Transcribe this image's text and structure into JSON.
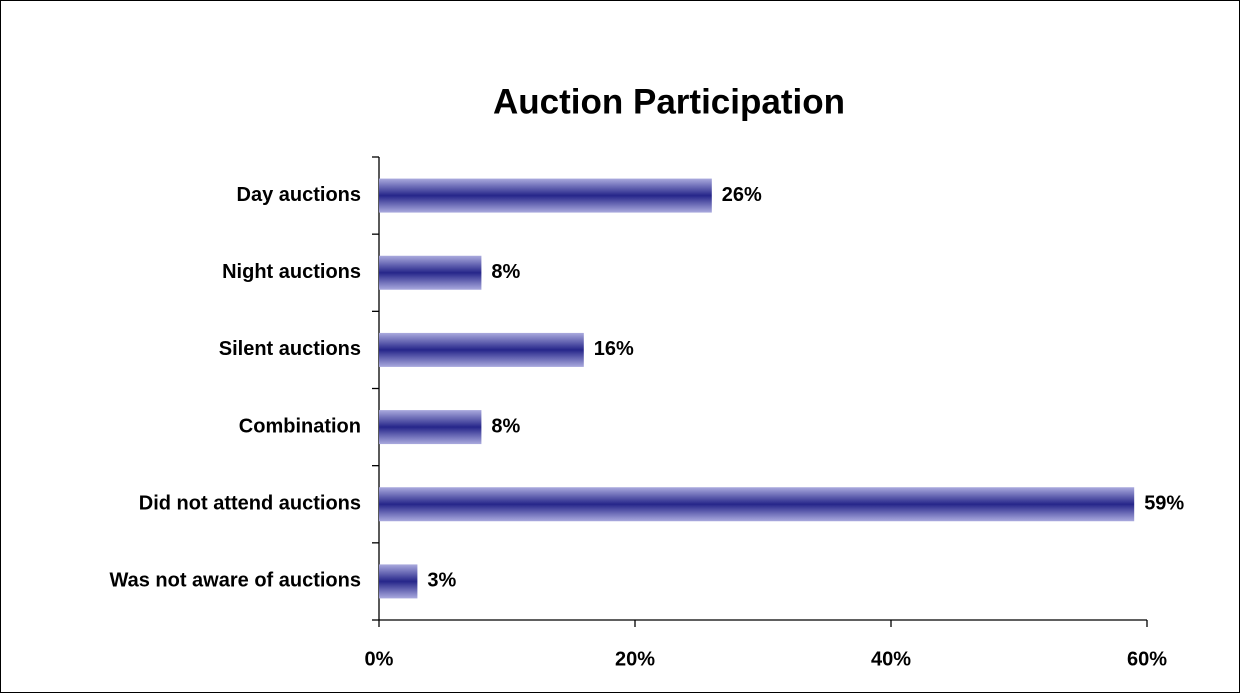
{
  "chart_data": {
    "type": "bar",
    "orientation": "horizontal",
    "title": "Auction Participation",
    "categories": [
      "Day auctions",
      "Night auctions",
      "Silent auctions",
      "Combination",
      "Did not attend auctions",
      "Was not aware of auctions"
    ],
    "values": [
      26,
      8,
      16,
      8,
      59,
      3
    ],
    "value_labels": [
      "26%",
      "8%",
      "16%",
      "8%",
      "59%",
      "3%"
    ],
    "color": "#2a2a8c",
    "xlim": [
      0,
      60
    ],
    "xticks": [
      {
        "value": 0,
        "label": "0%"
      },
      {
        "value": 20,
        "label": "20%"
      },
      {
        "value": 40,
        "label": "40%"
      },
      {
        "value": 60,
        "label": "60%"
      }
    ],
    "grid": false
  }
}
